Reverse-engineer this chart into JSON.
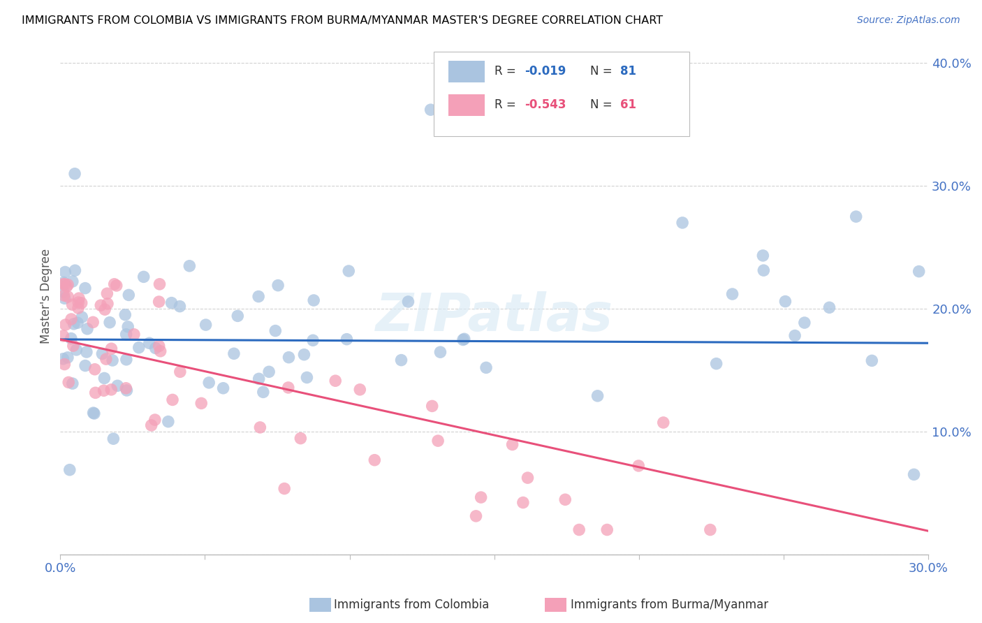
{
  "title": "IMMIGRANTS FROM COLOMBIA VS IMMIGRANTS FROM BURMA/MYANMAR MASTER'S DEGREE CORRELATION CHART",
  "source": "Source: ZipAtlas.com",
  "ylabel": "Master's Degree",
  "xlim": [
    0.0,
    0.3
  ],
  "ylim": [
    0.0,
    0.42
  ],
  "xtick_vals": [
    0.0,
    0.05,
    0.1,
    0.15,
    0.2,
    0.25,
    0.3
  ],
  "xtick_labels": [
    "0.0%",
    "",
    "",
    "",
    "",
    "",
    "30.0%"
  ],
  "ytick_vals": [
    0.0,
    0.1,
    0.2,
    0.3,
    0.4
  ],
  "ytick_labels": [
    "",
    "10.0%",
    "20.0%",
    "30.0%",
    "40.0%"
  ],
  "colombia_R": -0.019,
  "colombia_N": 81,
  "burma_R": -0.543,
  "burma_N": 61,
  "colombia_color": "#aac4e0",
  "burma_color": "#f4a0b8",
  "colombia_line_color": "#2b6abf",
  "burma_line_color": "#e8507a",
  "watermark": "ZIPatlas"
}
